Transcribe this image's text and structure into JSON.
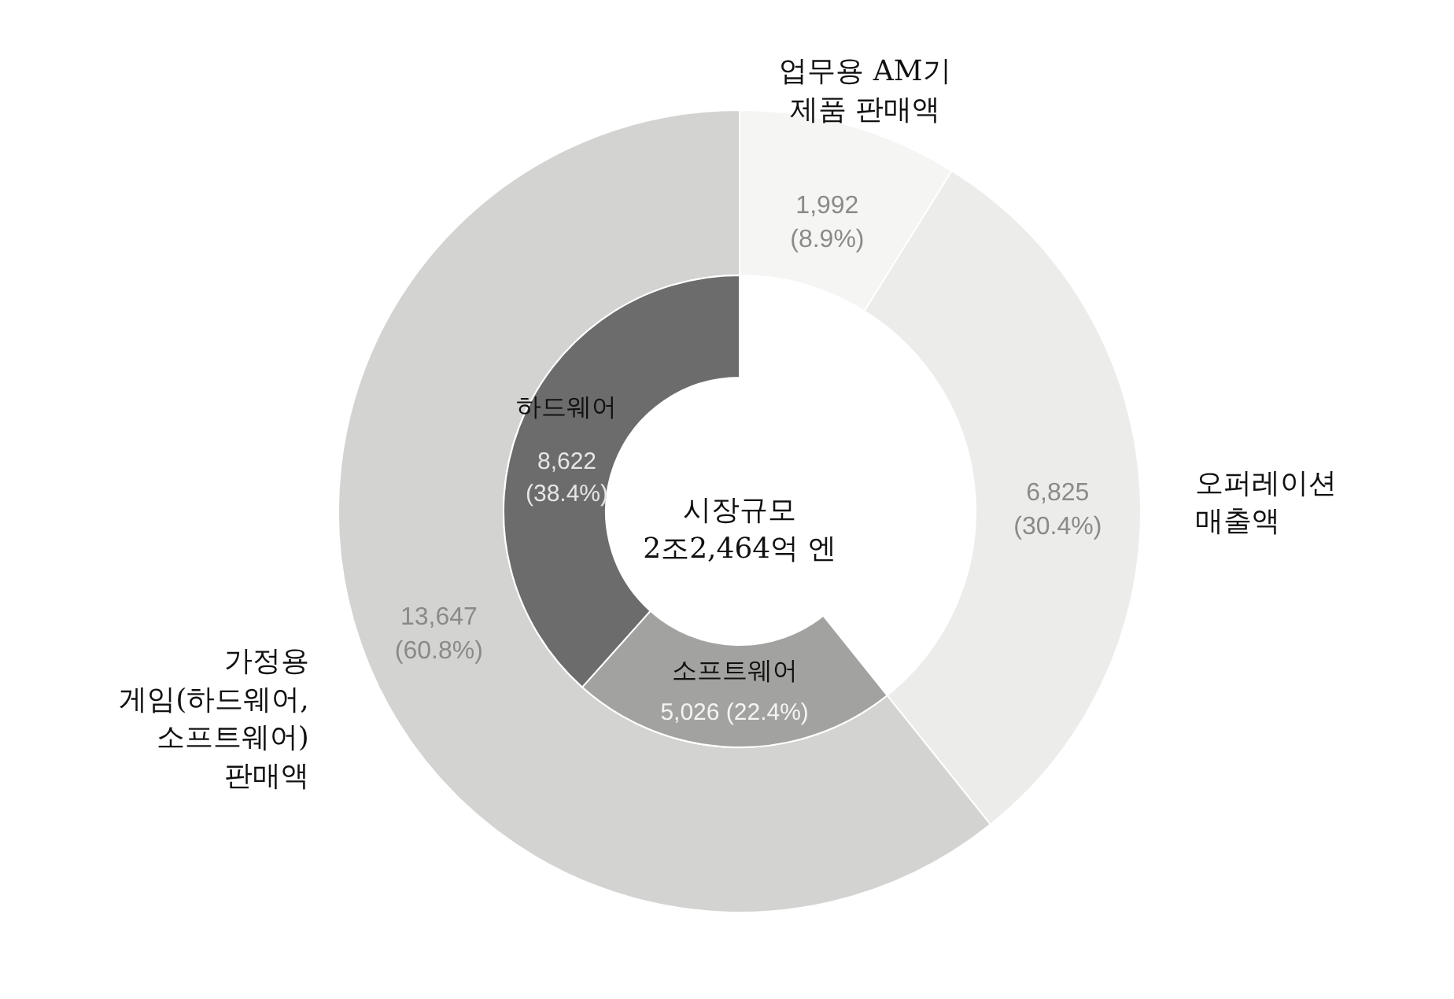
{
  "chart_data": [
    {
      "type": "donut",
      "categories": [
        "업무용 AM기\n제품 판매액",
        "오퍼레이션\n매출액",
        "가정용\n게임(하드웨어,\n소프트웨어)\n판매액"
      ],
      "values": [
        1992,
        6825,
        13647
      ],
      "colors": [
        "#f5f5f3",
        "#ececea",
        "#d3d3d1"
      ],
      "value_labels": [
        "1,992\n(8.9%)",
        "6,825\n(30.4%)",
        "13,647\n(60.8%)"
      ],
      "annotations": [
        "시장규모\n2조2,464억 엔"
      ]
    },
    {
      "type": "donut",
      "categories": [
        "소프트웨어",
        "하드웨어"
      ],
      "values": [
        5026,
        8622
      ],
      "colors": [
        "#a2a2a0",
        "#6c6c6c"
      ],
      "value_labels": [
        "5,026 (22.4%)",
        "8,622\n(38.4%)"
      ]
    }
  ]
}
